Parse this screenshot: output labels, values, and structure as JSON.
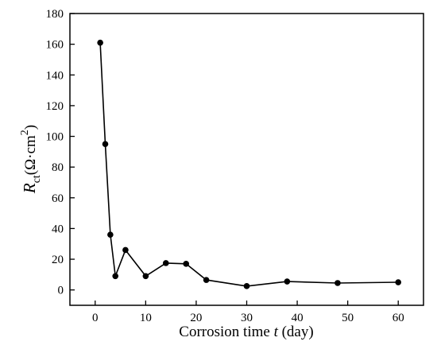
{
  "chart_data": {
    "type": "line",
    "xlabel": "Corrosion time t (day)",
    "ylabel": "Rct(Ω·cm2)",
    "xlim": [
      -5,
      65
    ],
    "ylim": [
      -10,
      180
    ],
    "x_ticks": [
      0,
      10,
      20,
      30,
      40,
      50,
      60
    ],
    "y_ticks": [
      0,
      20,
      40,
      60,
      80,
      100,
      120,
      140,
      160,
      180
    ],
    "grid": false,
    "legend": "none",
    "line_color": "#000000",
    "marker": "circle",
    "series": [
      {
        "x": [
          1,
          2,
          3,
          4,
          6,
          10,
          14,
          18,
          22,
          30,
          38,
          48,
          60
        ],
        "y": [
          161,
          95,
          36,
          9,
          26,
          9,
          17.5,
          17,
          6.5,
          2.5,
          5.5,
          4.5,
          5
        ]
      }
    ]
  }
}
